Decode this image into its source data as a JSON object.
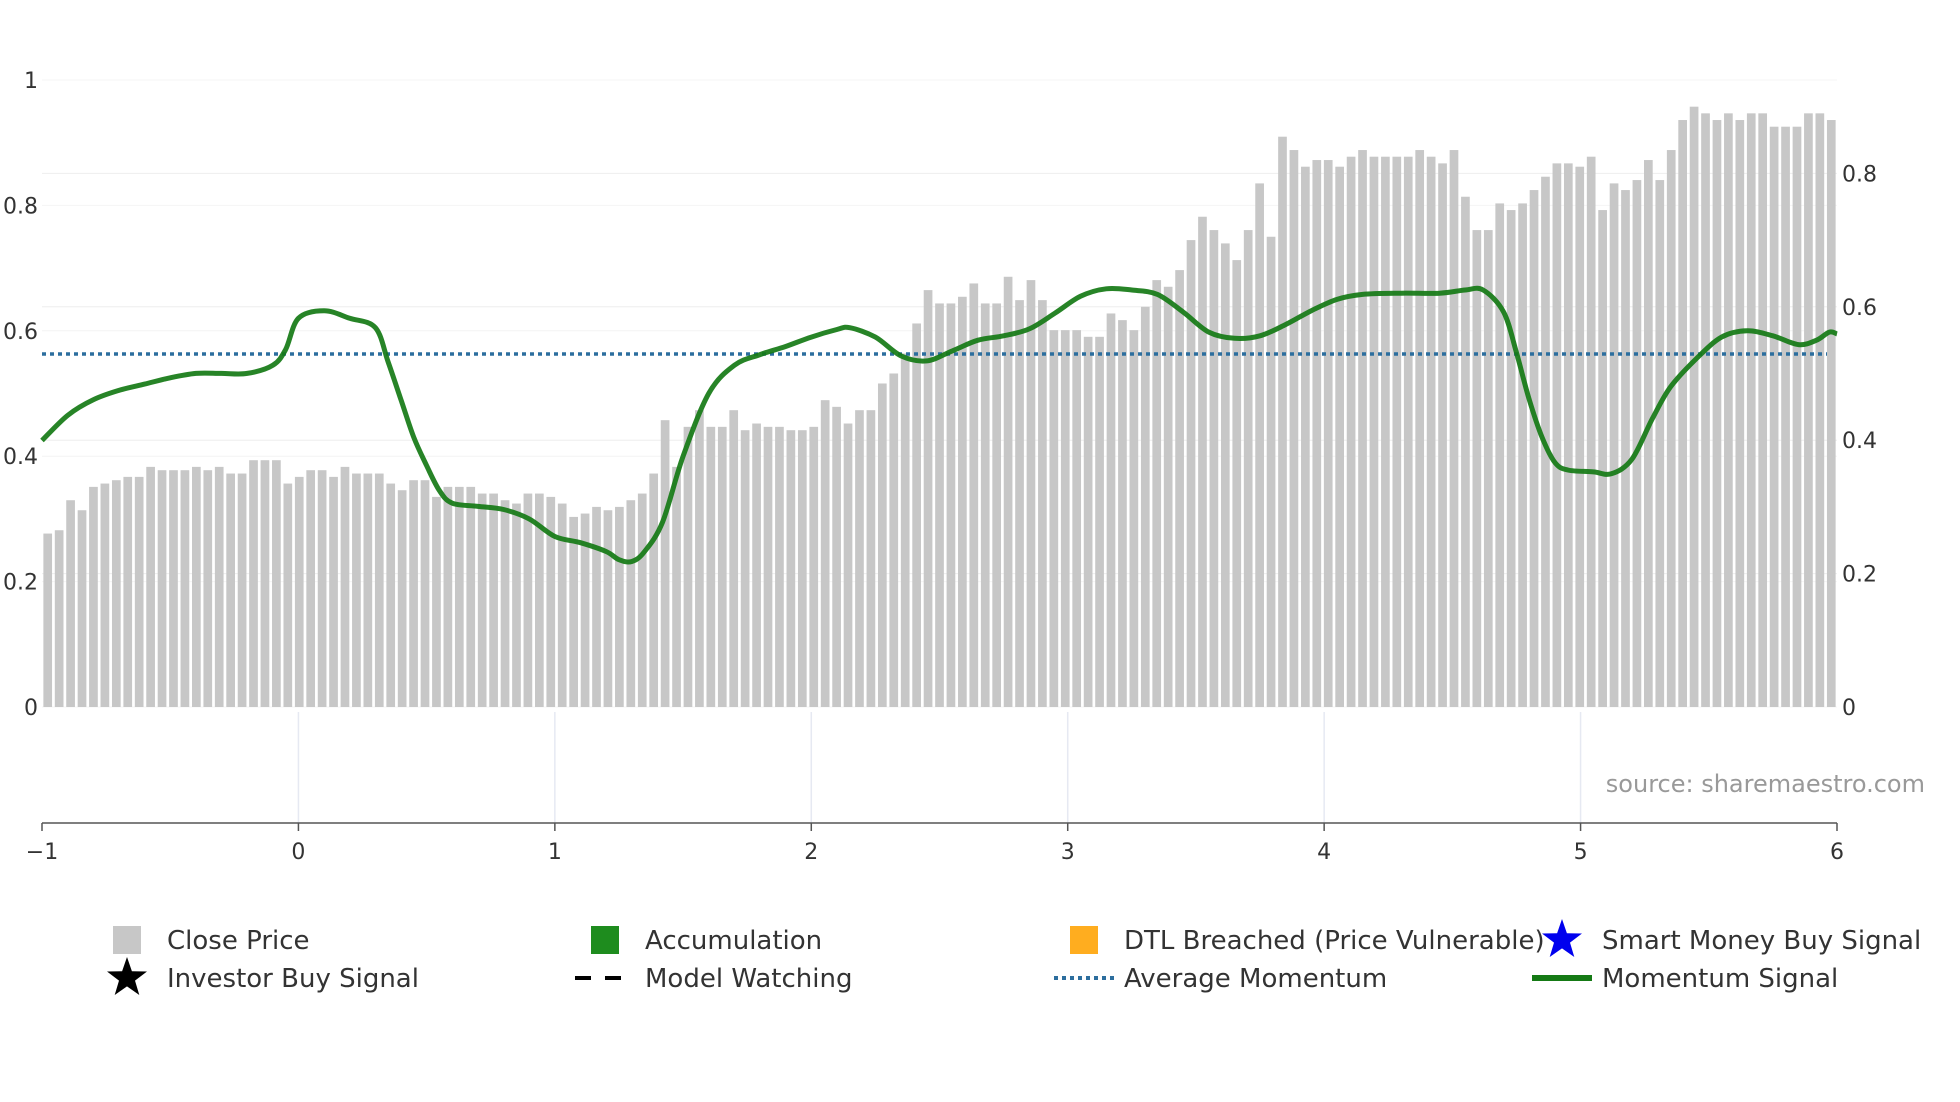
{
  "chart_data": {
    "type": "bar",
    "title": "",
    "xlabel": "",
    "ylabel": "",
    "source_label": "source: sharemaestro.com",
    "x_range": [
      -1,
      6
    ],
    "x_ticks": [
      "−1",
      "0",
      "1",
      "2",
      "3",
      "4",
      "5",
      "6"
    ],
    "y_left_range": [
      0,
      1
    ],
    "y_left_ticks": [
      "0",
      "0.2",
      "0.4",
      "0.6",
      "0.8",
      "1"
    ],
    "y_right_range": [
      0,
      0.94
    ],
    "y_right_ticks": [
      "0",
      "0.2",
      "0.4",
      "0.6",
      "0.8"
    ],
    "average_momentum": 0.563,
    "colors": {
      "close_price": "#c7c7c7",
      "accumulation": "#1e8c1e",
      "dtl_breached": "#ffad1f",
      "smart_money": "#0000ee",
      "investor": "#000000",
      "model_watching": "#000000",
      "average_momentum": "#2c6e9e",
      "momentum_signal": "#157a15"
    },
    "close_price": [
      0.26,
      0.265,
      0.31,
      0.295,
      0.33,
      0.335,
      0.34,
      0.345,
      0.345,
      0.36,
      0.355,
      0.355,
      0.355,
      0.36,
      0.355,
      0.36,
      0.35,
      0.35,
      0.37,
      0.37,
      0.37,
      0.335,
      0.345,
      0.355,
      0.355,
      0.345,
      0.36,
      0.35,
      0.35,
      0.35,
      0.335,
      0.325,
      0.34,
      0.34,
      0.315,
      0.33,
      0.33,
      0.33,
      0.32,
      0.32,
      0.31,
      0.305,
      0.32,
      0.32,
      0.315,
      0.305,
      0.285,
      0.29,
      0.3,
      0.295,
      0.3,
      0.31,
      0.32,
      0.35,
      0.43,
      0.36,
      0.42,
      0.445,
      0.42,
      0.42,
      0.445,
      0.415,
      0.425,
      0.42,
      0.42,
      0.415,
      0.415,
      0.42,
      0.46,
      0.45,
      0.425,
      0.445,
      0.445,
      0.485,
      0.5,
      0.53,
      0.575,
      0.625,
      0.605,
      0.605,
      0.615,
      0.635,
      0.605,
      0.605,
      0.645,
      0.61,
      0.64,
      0.61,
      0.565,
      0.565,
      0.565,
      0.555,
      0.555,
      0.59,
      0.58,
      0.565,
      0.6,
      0.64,
      0.63,
      0.655,
      0.7,
      0.735,
      0.715,
      0.695,
      0.67,
      0.715,
      0.785,
      0.705,
      0.855,
      0.835,
      0.81,
      0.82,
      0.82,
      0.81,
      0.825,
      0.835,
      0.825,
      0.825,
      0.825,
      0.825,
      0.835,
      0.825,
      0.815,
      0.835,
      0.765,
      0.715,
      0.715,
      0.755,
      0.745,
      0.755,
      0.775,
      0.795,
      0.815,
      0.815,
      0.81,
      0.825,
      0.745,
      0.785,
      0.775,
      0.79,
      0.82,
      0.79,
      0.835,
      0.88,
      0.9,
      0.89,
      0.88,
      0.89,
      0.88,
      0.89,
      0.89,
      0.87,
      0.87,
      0.87,
      0.89,
      0.89,
      0.88
    ],
    "momentum_signal": [
      [
        -1.0,
        0.425
      ],
      [
        -0.9,
        0.465
      ],
      [
        -0.8,
        0.49
      ],
      [
        -0.7,
        0.505
      ],
      [
        -0.6,
        0.515
      ],
      [
        -0.5,
        0.525
      ],
      [
        -0.4,
        0.532
      ],
      [
        -0.3,
        0.532
      ],
      [
        -0.2,
        0.532
      ],
      [
        -0.1,
        0.545
      ],
      [
        -0.05,
        0.57
      ],
      [
        0.0,
        0.62
      ],
      [
        0.1,
        0.632
      ],
      [
        0.2,
        0.62
      ],
      [
        0.3,
        0.605
      ],
      [
        0.35,
        0.55
      ],
      [
        0.4,
        0.49
      ],
      [
        0.45,
        0.43
      ],
      [
        0.5,
        0.385
      ],
      [
        0.55,
        0.345
      ],
      [
        0.6,
        0.325
      ],
      [
        0.7,
        0.32
      ],
      [
        0.8,
        0.315
      ],
      [
        0.9,
        0.3
      ],
      [
        1.0,
        0.272
      ],
      [
        1.1,
        0.262
      ],
      [
        1.2,
        0.248
      ],
      [
        1.25,
        0.235
      ],
      [
        1.3,
        0.232
      ],
      [
        1.35,
        0.248
      ],
      [
        1.42,
        0.295
      ],
      [
        1.5,
        0.4
      ],
      [
        1.6,
        0.5
      ],
      [
        1.7,
        0.545
      ],
      [
        1.8,
        0.562
      ],
      [
        1.9,
        0.575
      ],
      [
        2.0,
        0.59
      ],
      [
        2.1,
        0.602
      ],
      [
        2.15,
        0.605
      ],
      [
        2.25,
        0.59
      ],
      [
        2.35,
        0.56
      ],
      [
        2.45,
        0.552
      ],
      [
        2.55,
        0.568
      ],
      [
        2.65,
        0.585
      ],
      [
        2.75,
        0.592
      ],
      [
        2.85,
        0.603
      ],
      [
        2.95,
        0.628
      ],
      [
        3.05,
        0.655
      ],
      [
        3.15,
        0.667
      ],
      [
        3.25,
        0.665
      ],
      [
        3.35,
        0.658
      ],
      [
        3.45,
        0.63
      ],
      [
        3.55,
        0.598
      ],
      [
        3.65,
        0.588
      ],
      [
        3.75,
        0.592
      ],
      [
        3.85,
        0.61
      ],
      [
        3.95,
        0.632
      ],
      [
        4.05,
        0.65
      ],
      [
        4.15,
        0.658
      ],
      [
        4.3,
        0.66
      ],
      [
        4.45,
        0.66
      ],
      [
        4.55,
        0.665
      ],
      [
        4.62,
        0.665
      ],
      [
        4.7,
        0.63
      ],
      [
        4.75,
        0.565
      ],
      [
        4.8,
        0.49
      ],
      [
        4.85,
        0.43
      ],
      [
        4.9,
        0.39
      ],
      [
        4.95,
        0.378
      ],
      [
        5.05,
        0.375
      ],
      [
        5.12,
        0.372
      ],
      [
        5.2,
        0.395
      ],
      [
        5.28,
        0.46
      ],
      [
        5.35,
        0.51
      ],
      [
        5.45,
        0.555
      ],
      [
        5.55,
        0.59
      ],
      [
        5.65,
        0.6
      ],
      [
        5.75,
        0.592
      ],
      [
        5.85,
        0.578
      ],
      [
        5.92,
        0.585
      ],
      [
        5.97,
        0.598
      ],
      [
        6.0,
        0.595
      ]
    ],
    "legend": [
      {
        "label": "Close Price",
        "symbol": "square",
        "color": "#c7c7c7"
      },
      {
        "label": "Accumulation",
        "symbol": "square",
        "color": "#1e8c1e"
      },
      {
        "label": "DTL Breached (Price Vulnerable)",
        "symbol": "square",
        "color": "#ffad1f"
      },
      {
        "label": "Smart Money Buy Signal",
        "symbol": "star",
        "color": "#0000ee"
      },
      {
        "label": "Investor Buy Signal",
        "symbol": "star",
        "color": "#000000"
      },
      {
        "label": "Model Watching",
        "symbol": "dash",
        "color": "#000000"
      },
      {
        "label": "Average Momentum",
        "symbol": "dot",
        "color": "#2c6e9e"
      },
      {
        "label": "Momentum Signal",
        "symbol": "line",
        "color": "#157a15"
      }
    ]
  }
}
